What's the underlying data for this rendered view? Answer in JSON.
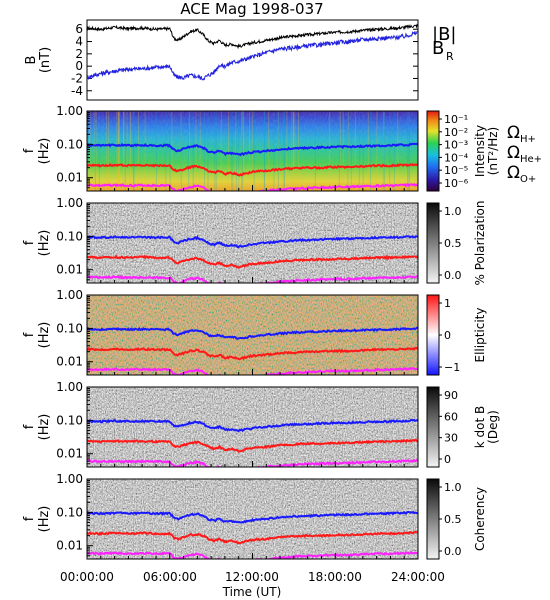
{
  "title": "ACE Mag 1998-037",
  "xlabel": "Time (UT)",
  "x_ticks": [
    "00:00:00",
    "06:00:00",
    "12:00:00",
    "18:00:00",
    "24:00:00"
  ],
  "freq_ticks": [
    "1.00",
    "0.10",
    "0.01"
  ],
  "colors": {
    "B_total": "#000000",
    "B_R": "#2222dd",
    "H_plus": "#1a1aff",
    "He_plus": "#ff1a1a",
    "O_plus": "#ff22ff"
  },
  "chart_data": [
    {
      "type": "line",
      "panel": "B",
      "ylabel": "B",
      "ylabel_unit": "(nT)",
      "y_ticks": [
        "6",
        "4",
        "2",
        "0",
        "-2",
        "-4"
      ],
      "ylim": [
        -5.5,
        7.5
      ],
      "xlim_hours": [
        0,
        24
      ],
      "legend": [
        "|B|",
        "B",
        "R"
      ],
      "series": [
        {
          "name": "|B|",
          "x_hours": [
            0,
            1,
            2,
            3,
            4,
            5,
            6,
            6.3,
            6.6,
            7,
            7.5,
            8,
            8.4,
            8.8,
            9.2,
            9.6,
            10,
            10.5,
            11,
            12,
            13,
            14,
            15,
            16,
            17,
            18,
            19,
            20,
            21,
            22,
            23,
            24
          ],
          "values": [
            6.2,
            6.0,
            6.3,
            6.1,
            6.2,
            6.0,
            6.1,
            4.5,
            4.2,
            4.8,
            5.6,
            5.9,
            5.2,
            4.1,
            3.7,
            4.2,
            3.4,
            3.6,
            3.2,
            3.8,
            4.2,
            4.6,
            4.9,
            5.1,
            5.3,
            5.5,
            5.6,
            5.8,
            6.0,
            6.1,
            6.3,
            6.6
          ]
        },
        {
          "name": "B_R",
          "x_hours": [
            0,
            1,
            2,
            3,
            4,
            5,
            6,
            6.3,
            6.6,
            7,
            7.5,
            8,
            8.4,
            8.8,
            9.2,
            9.6,
            10,
            10.5,
            11,
            12,
            13,
            14,
            15,
            16,
            17,
            18,
            19,
            20,
            21,
            22,
            23,
            24
          ],
          "values": [
            -1.8,
            -1.2,
            -0.8,
            -0.5,
            -0.4,
            -0.2,
            0.0,
            -1.5,
            -1.8,
            -1.9,
            -1.5,
            -1.7,
            -2.0,
            -1.5,
            -1.0,
            0.2,
            0.0,
            0.6,
            0.8,
            1.5,
            2.2,
            2.8,
            3.0,
            3.3,
            3.5,
            3.8,
            4.0,
            4.3,
            4.5,
            4.6,
            4.8,
            5.5
          ]
        }
      ]
    },
    {
      "type": "heatmap",
      "panel": "intensity",
      "ylabel": "f",
      "ylabel_unit": "(Hz)",
      "yscale": "log",
      "ylim_hz": [
        0.004,
        1.0
      ],
      "colorbar_label": "Intensity",
      "colorbar_unit": "(nT²/Hz)",
      "colorbar_ticks": [
        "10⁻¹",
        "10⁻²",
        "10⁻³",
        "10⁻⁴",
        "10⁻⁵",
        "10⁻⁶"
      ],
      "colorbar_scale": "rainbow",
      "legend": [
        "Ω",
        "H+",
        "Ω",
        "He+",
        "Ω",
        "O+"
      ]
    },
    {
      "type": "heatmap",
      "panel": "polarization",
      "ylabel": "f",
      "ylabel_unit": "(Hz)",
      "yscale": "log",
      "colorbar_label": "% Polarization",
      "colorbar_ticks": [
        "1.0",
        "0.5",
        "0.0"
      ],
      "colorbar_scale": "gray"
    },
    {
      "type": "heatmap",
      "panel": "ellipticity",
      "ylabel": "f",
      "ylabel_unit": "(Hz)",
      "yscale": "log",
      "colorbar_label": "Ellipticity",
      "colorbar_ticks": [
        "1",
        "0",
        "−1"
      ],
      "colorbar_scale": "blue-white-red"
    },
    {
      "type": "heatmap",
      "panel": "k_dot_b",
      "ylabel": "f",
      "ylabel_unit": "(Hz)",
      "yscale": "log",
      "colorbar_label": "k dot B",
      "colorbar_unit": "(Deg)",
      "colorbar_ticks": [
        "90",
        "60",
        "30",
        "0"
      ],
      "colorbar_scale": "gray"
    },
    {
      "type": "heatmap",
      "panel": "coherency",
      "ylabel": "f",
      "ylabel_unit": "(Hz)",
      "yscale": "log",
      "colorbar_label": "Coherency",
      "colorbar_ticks": [
        "1.0",
        "0.5",
        "0.0"
      ],
      "colorbar_scale": "gray"
    }
  ],
  "gyrofrequency_lines": {
    "x_hours": [
      0,
      1,
      2,
      3,
      4,
      5,
      6,
      6.3,
      6.6,
      7,
      7.5,
      8,
      8.4,
      8.8,
      9.2,
      9.6,
      10,
      10.5,
      11,
      12,
      13,
      14,
      15,
      16,
      17,
      18,
      19,
      20,
      21,
      22,
      23,
      24
    ],
    "H_plus_hz": [
      0.095,
      0.092,
      0.096,
      0.093,
      0.094,
      0.092,
      0.093,
      0.068,
      0.064,
      0.073,
      0.085,
      0.09,
      0.079,
      0.062,
      0.056,
      0.064,
      0.052,
      0.055,
      0.049,
      0.058,
      0.064,
      0.07,
      0.075,
      0.078,
      0.081,
      0.084,
      0.085,
      0.088,
      0.091,
      0.093,
      0.096,
      0.1
    ],
    "He_plus_hz": [
      0.024,
      0.023,
      0.024,
      0.023,
      0.024,
      0.023,
      0.023,
      0.017,
      0.016,
      0.018,
      0.021,
      0.022,
      0.02,
      0.016,
      0.014,
      0.016,
      0.013,
      0.014,
      0.012,
      0.015,
      0.016,
      0.018,
      0.019,
      0.02,
      0.02,
      0.021,
      0.021,
      0.022,
      0.023,
      0.023,
      0.024,
      0.025
    ],
    "O_plus_hz": [
      0.006,
      0.0058,
      0.006,
      0.0058,
      0.0059,
      0.0058,
      0.0058,
      0.0043,
      0.004,
      0.0046,
      0.0053,
      0.0056,
      0.005,
      0.0039,
      0.0035,
      0.004,
      0.0033,
      0.0035,
      0.0031,
      0.0036,
      0.004,
      0.0044,
      0.0047,
      0.0049,
      0.0051,
      0.0052,
      0.0053,
      0.0055,
      0.0057,
      0.0058,
      0.006,
      0.0062
    ]
  }
}
